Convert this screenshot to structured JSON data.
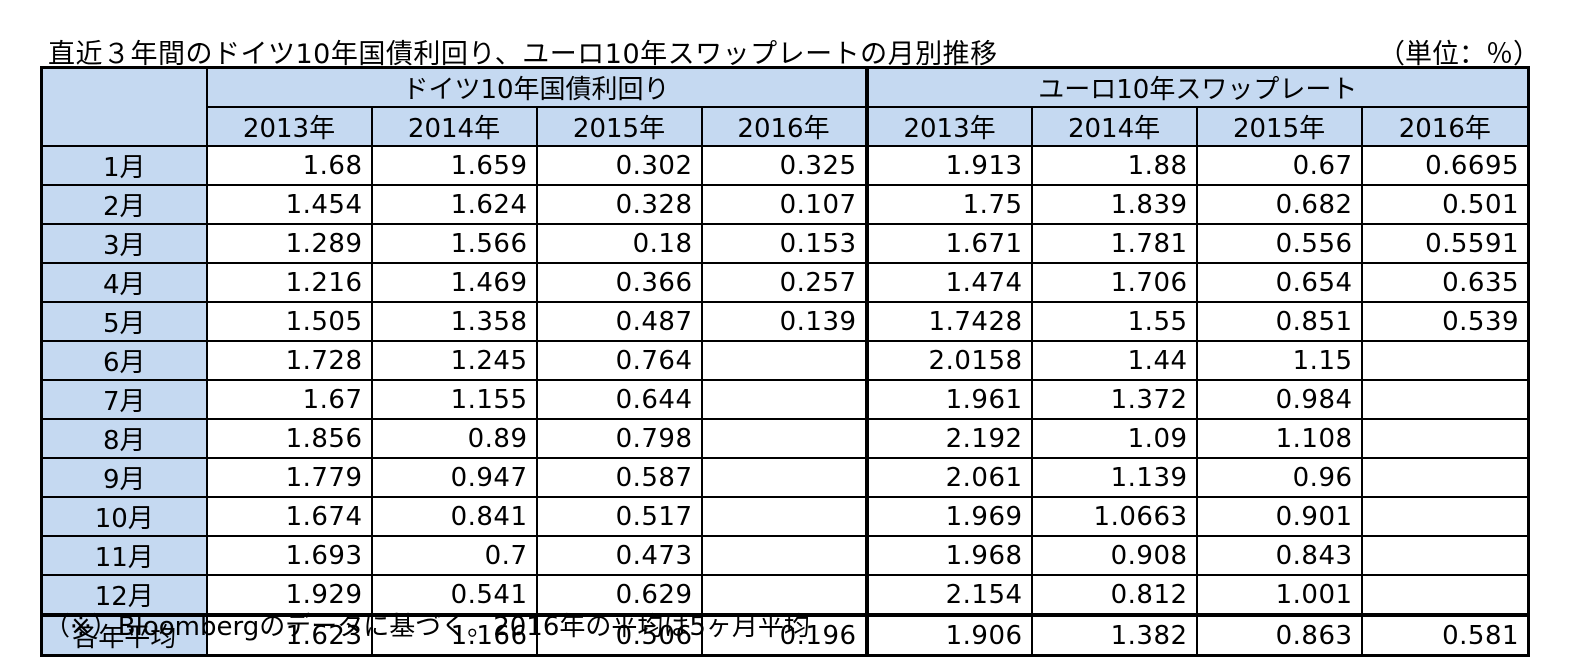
{
  "title": "直近３年間のドイツ10年国債利回り、ユーロ10年スワップレートの月別推移",
  "unit": "（単位：％）",
  "groups": [
    "ドイツ10年国債利回り",
    "ユーロ10年スワップレート"
  ],
  "years": [
    "2013年",
    "2014年",
    "2015年",
    "2016年",
    "2013年",
    "2014年",
    "2015年",
    "2016年"
  ],
  "rows": [
    {
      "label": "1月",
      "values": [
        "1.68",
        "1.659",
        "0.302",
        "0.325",
        "1.913",
        "1.88",
        "0.67",
        "0.6695"
      ]
    },
    {
      "label": "2月",
      "values": [
        "1.454",
        "1.624",
        "0.328",
        "0.107",
        "1.75",
        "1.839",
        "0.682",
        "0.501"
      ]
    },
    {
      "label": "3月",
      "values": [
        "1.289",
        "1.566",
        "0.18",
        "0.153",
        "1.671",
        "1.781",
        "0.556",
        "0.5591"
      ]
    },
    {
      "label": "4月",
      "values": [
        "1.216",
        "1.469",
        "0.366",
        "0.257",
        "1.474",
        "1.706",
        "0.654",
        "0.635"
      ]
    },
    {
      "label": "5月",
      "values": [
        "1.505",
        "1.358",
        "0.487",
        "0.139",
        "1.7428",
        "1.55",
        "0.851",
        "0.539"
      ]
    },
    {
      "label": "6月",
      "values": [
        "1.728",
        "1.245",
        "0.764",
        "",
        "2.0158",
        "1.44",
        "1.15",
        ""
      ]
    },
    {
      "label": "7月",
      "values": [
        "1.67",
        "1.155",
        "0.644",
        "",
        "1.961",
        "1.372",
        "0.984",
        ""
      ]
    },
    {
      "label": "8月",
      "values": [
        "1.856",
        "0.89",
        "0.798",
        "",
        "2.192",
        "1.09",
        "1.108",
        ""
      ]
    },
    {
      "label": "9月",
      "values": [
        "1.779",
        "0.947",
        "0.587",
        "",
        "2.061",
        "1.139",
        "0.96",
        ""
      ]
    },
    {
      "label": "10月",
      "values": [
        "1.674",
        "0.841",
        "0.517",
        "",
        "1.969",
        "1.0663",
        "0.901",
        ""
      ]
    },
    {
      "label": "11月",
      "values": [
        "1.693",
        "0.7",
        "0.473",
        "",
        "1.968",
        "0.908",
        "0.843",
        ""
      ]
    },
    {
      "label": "12月",
      "values": [
        "1.929",
        "0.541",
        "0.629",
        "",
        "2.154",
        "0.812",
        "1.001",
        ""
      ]
    }
  ],
  "average": {
    "label": "各年平均",
    "values": [
      "1.623",
      "1.166",
      "0.506",
      "0.196",
      "1.906",
      "1.382",
      "0.863",
      "0.581"
    ]
  },
  "note": "（※）Bloombergのデータに基づく。2016年の平均は5ヶ月平均",
  "colors": {
    "header_fill": "#c5d9f1",
    "border": "#000000"
  }
}
